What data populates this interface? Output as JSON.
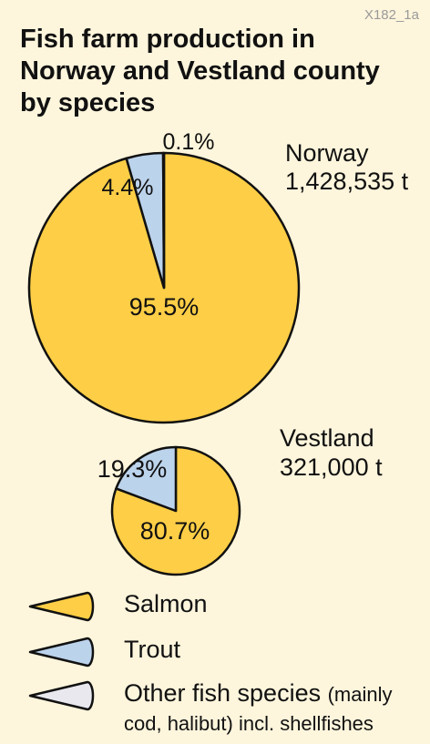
{
  "code": "X182_1a",
  "title": "Fish farm production in Norway and Vestland county by species",
  "colors": {
    "salmon": "#fdce46",
    "trout": "#bcd3ec",
    "other": "#e8e8ee",
    "stroke": "#111111",
    "background": "#fdf5dc"
  },
  "chart_data": [
    {
      "type": "pie",
      "name": "Norway",
      "total": "1,428,535 t",
      "slices": [
        {
          "label": "Salmon",
          "value": 95.5,
          "text": "95.5%"
        },
        {
          "label": "Trout",
          "value": 4.4,
          "text": "4.4%"
        },
        {
          "label": "Other fish species",
          "value": 0.1,
          "text": "0.1%"
        }
      ]
    },
    {
      "type": "pie",
      "name": "Vestland",
      "total": "321,000 t",
      "slices": [
        {
          "label": "Salmon",
          "value": 80.7,
          "text": "80.7%"
        },
        {
          "label": "Trout",
          "value": 19.3,
          "text": "19.3%"
        }
      ]
    }
  ],
  "legend": [
    {
      "key": "salmon",
      "label": "Salmon",
      "note": ""
    },
    {
      "key": "trout",
      "label": "Trout",
      "note": ""
    },
    {
      "key": "other",
      "label": "Other fish species",
      "note": "(mainly cod, halibut) incl. shellfishes"
    }
  ]
}
